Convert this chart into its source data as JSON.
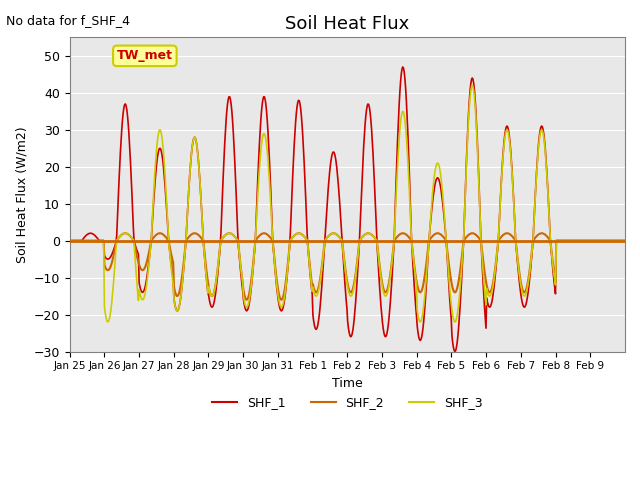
{
  "title": "Soil Heat Flux",
  "note": "No data for f_SHF_4",
  "ylabel": "Soil Heat Flux (W/m2)",
  "xlabel": "Time",
  "annotation": "TW_met",
  "ylim": [
    -30,
    55
  ],
  "background_color": "#e8e8e8",
  "series_colors": {
    "SHF_1": "#cc0000",
    "SHF_2": "#cc6600",
    "SHF_3": "#cccc00"
  },
  "zero_line_color": "#cc6600",
  "xtick_labels": [
    "Jan 25",
    "Jan 26",
    "Jan 27",
    "Jan 28",
    "Jan 29",
    "Jan 30",
    "Jan 31",
    "Feb 1",
    "Feb 2",
    "Feb 3",
    "Feb 4",
    "Feb 5",
    "Feb 6",
    "Feb 7",
    "Feb 8",
    "Feb 9"
  ],
  "num_days": 16
}
